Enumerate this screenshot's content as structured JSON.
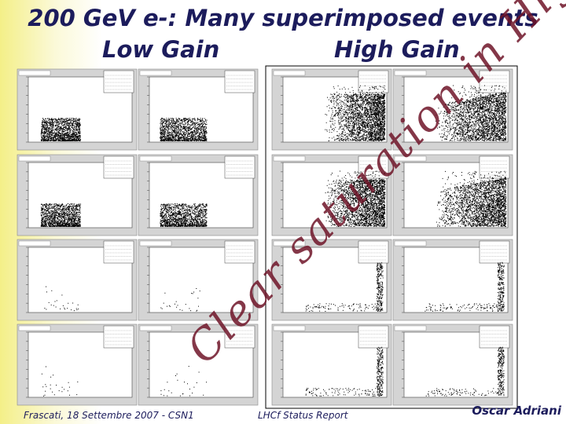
{
  "header": {
    "title": "200 GeV e-: Many superimposed events",
    "low_gain": "Low Gain",
    "high_gain": "High Gain"
  },
  "annotation": "Clear saturation in High Gain",
  "footer": {
    "left": "Frascati, 18 Settembre 2007 - CSN1",
    "center": "LHCf Status Report",
    "right": "Oscar Adriani"
  }
}
